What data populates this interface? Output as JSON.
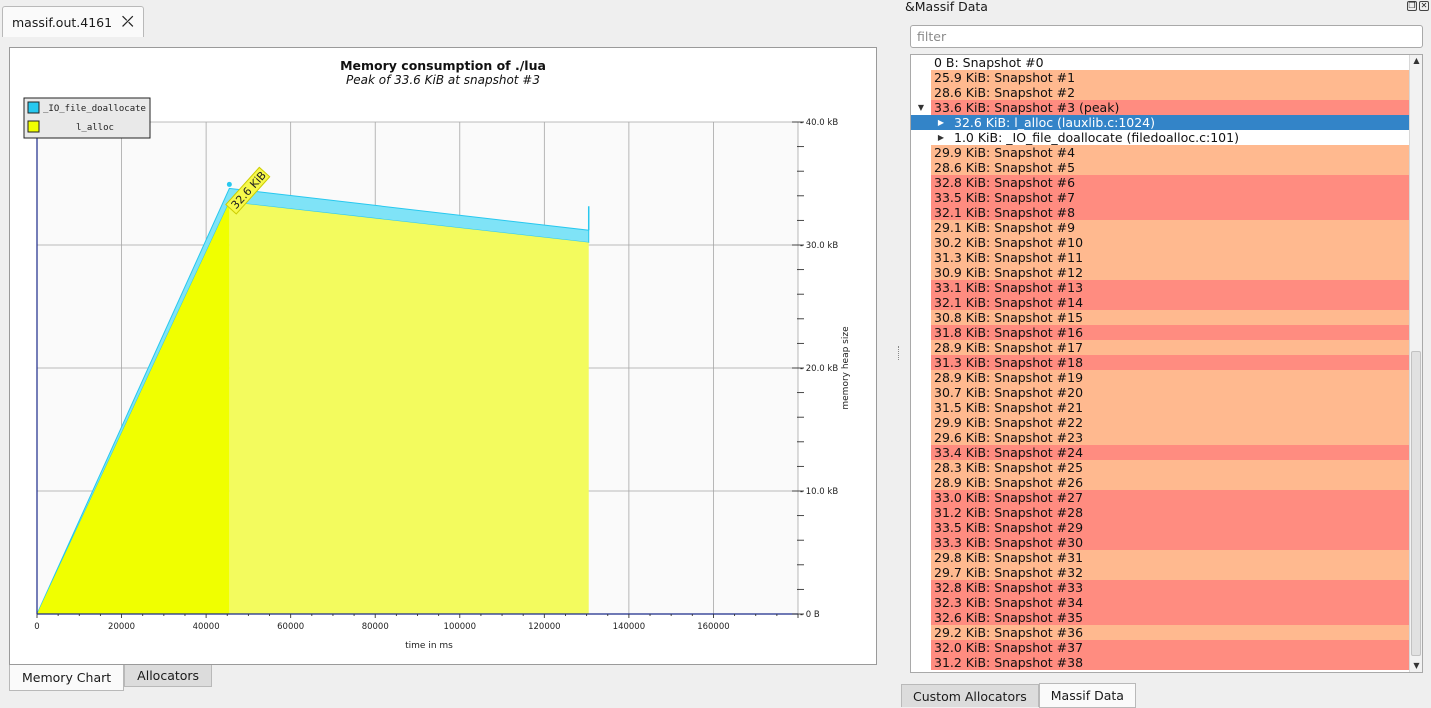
{
  "document_tab": {
    "title": "massif.out.4161",
    "close_icon": "close-x-icon"
  },
  "chart_data": {
    "type": "area",
    "title": "Memory consumption of ./lua",
    "subtitle": "Peak of 33.6 KiB at snapshot #3",
    "xlabel": "time in ms",
    "ylabel": "memory heap size",
    "xlim": [
      0,
      180000
    ],
    "ylim": [
      0,
      40
    ],
    "x_ticks": [
      "0",
      "20000",
      "40000",
      "60000",
      "80000",
      "100000",
      "120000",
      "140000",
      "160000"
    ],
    "y_ticks": [
      "0 B",
      "10.0 kB",
      "20.0 kB",
      "30.0 kB",
      "40.0 kB"
    ],
    "legend": [
      "_IO_file_doallocate",
      "l_alloc"
    ],
    "legend_position": "top-left",
    "grid": true,
    "peak_label": "32.6 KiB",
    "series": [
      {
        "name": "l_alloc",
        "color": "#f0ff00",
        "x": [
          0,
          45500,
          130500
        ],
        "y": [
          0,
          33.5,
          30.2
        ]
      },
      {
        "name": "_IO_file_doallocate",
        "color": "#27c8ef",
        "x": [
          0,
          45500,
          130500
        ],
        "y": [
          0,
          34.6,
          31.2
        ]
      }
    ]
  },
  "bottom_tabs": {
    "memory_chart": "Memory Chart",
    "allocators": "Allocators"
  },
  "dock": {
    "title": "&Massif Data",
    "filter_placeholder": "filter",
    "tabs": {
      "custom_allocators": "Custom Allocators",
      "massif_data": "Massif Data"
    }
  },
  "colors": {
    "light": "#ffb98f",
    "dark": "#ff8c80",
    "selected": "#3384c8"
  },
  "snapshots": [
    {
      "label": "0 B: Snapshot #0",
      "bg": "none"
    },
    {
      "label": "25.9 KiB: Snapshot #1",
      "bg": "light"
    },
    {
      "label": "28.6 KiB: Snapshot #2",
      "bg": "light"
    },
    {
      "label": "33.6 KiB: Snapshot #3 (peak)",
      "bg": "dark",
      "expanded": true
    },
    {
      "label": "32.6 KiB: l_alloc (lauxlib.c:1024)",
      "bg": "selected",
      "child": true
    },
    {
      "label": "1.0 KiB: _IO_file_doallocate (filedoalloc.c:101)",
      "bg": "none",
      "child": true
    },
    {
      "label": "29.9 KiB: Snapshot #4",
      "bg": "light"
    },
    {
      "label": "28.6 KiB: Snapshot #5",
      "bg": "light"
    },
    {
      "label": "32.8 KiB: Snapshot #6",
      "bg": "dark"
    },
    {
      "label": "33.5 KiB: Snapshot #7",
      "bg": "dark"
    },
    {
      "label": "32.1 KiB: Snapshot #8",
      "bg": "dark"
    },
    {
      "label": "29.1 KiB: Snapshot #9",
      "bg": "light"
    },
    {
      "label": "30.2 KiB: Snapshot #10",
      "bg": "light"
    },
    {
      "label": "31.3 KiB: Snapshot #11",
      "bg": "light"
    },
    {
      "label": "30.9 KiB: Snapshot #12",
      "bg": "light"
    },
    {
      "label": "33.1 KiB: Snapshot #13",
      "bg": "dark"
    },
    {
      "label": "32.1 KiB: Snapshot #14",
      "bg": "dark"
    },
    {
      "label": "30.8 KiB: Snapshot #15",
      "bg": "light"
    },
    {
      "label": "31.8 KiB: Snapshot #16",
      "bg": "dark"
    },
    {
      "label": "28.9 KiB: Snapshot #17",
      "bg": "light"
    },
    {
      "label": "31.3 KiB: Snapshot #18",
      "bg": "dark"
    },
    {
      "label": "28.9 KiB: Snapshot #19",
      "bg": "light"
    },
    {
      "label": "30.7 KiB: Snapshot #20",
      "bg": "light"
    },
    {
      "label": "31.5 KiB: Snapshot #21",
      "bg": "light"
    },
    {
      "label": "29.9 KiB: Snapshot #22",
      "bg": "light"
    },
    {
      "label": "29.6 KiB: Snapshot #23",
      "bg": "light"
    },
    {
      "label": "33.4 KiB: Snapshot #24",
      "bg": "dark"
    },
    {
      "label": "28.3 KiB: Snapshot #25",
      "bg": "light"
    },
    {
      "label": "28.9 KiB: Snapshot #26",
      "bg": "light"
    },
    {
      "label": "33.0 KiB: Snapshot #27",
      "bg": "dark"
    },
    {
      "label": "31.2 KiB: Snapshot #28",
      "bg": "dark"
    },
    {
      "label": "33.5 KiB: Snapshot #29",
      "bg": "dark"
    },
    {
      "label": "33.3 KiB: Snapshot #30",
      "bg": "dark"
    },
    {
      "label": "29.8 KiB: Snapshot #31",
      "bg": "light"
    },
    {
      "label": "29.7 KiB: Snapshot #32",
      "bg": "light"
    },
    {
      "label": "32.8 KiB: Snapshot #33",
      "bg": "dark"
    },
    {
      "label": "32.3 KiB: Snapshot #34",
      "bg": "dark"
    },
    {
      "label": "32.6 KiB: Snapshot #35",
      "bg": "dark"
    },
    {
      "label": "29.2 KiB: Snapshot #36",
      "bg": "light"
    },
    {
      "label": "32.0 KiB: Snapshot #37",
      "bg": "dark"
    },
    {
      "label": "31.2 KiB: Snapshot #38",
      "bg": "dark"
    }
  ]
}
